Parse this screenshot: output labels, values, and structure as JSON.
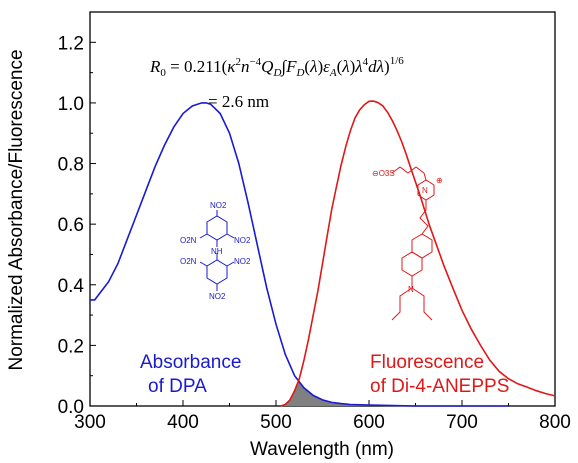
{
  "chart_data": {
    "type": "line",
    "title": "",
    "xlabel": "Wavelength (nm)",
    "ylabel": "Normalized Absorbance/Fluorescence",
    "xlim": [
      300,
      800
    ],
    "ylim": [
      0.0,
      1.3
    ],
    "x_ticks": [
      "300",
      "400",
      "500",
      "600",
      "700",
      "800"
    ],
    "y_ticks": [
      "0.0",
      "0.2",
      "0.4",
      "0.6",
      "0.8",
      "1.0",
      "1.2"
    ],
    "grid": false,
    "legend": "none",
    "series": [
      {
        "color": "#1a1ad0",
        "x": [
          300,
          305,
          310,
          320,
          330,
          340,
          350,
          360,
          370,
          380,
          390,
          400,
          410,
          420,
          425,
          430,
          440,
          450,
          460,
          470,
          480,
          490,
          500,
          510,
          520,
          530,
          540,
          550,
          560,
          570,
          580,
          600,
          620,
          650,
          700,
          750
        ],
        "y": [
          0.35,
          0.35,
          0.37,
          0.41,
          0.47,
          0.55,
          0.63,
          0.71,
          0.79,
          0.86,
          0.92,
          0.965,
          0.99,
          1.0,
          1.0,
          0.995,
          0.965,
          0.9,
          0.8,
          0.67,
          0.53,
          0.39,
          0.27,
          0.17,
          0.1,
          0.06,
          0.035,
          0.02,
          0.012,
          0.008,
          0.005,
          0.003,
          0.002,
          0.0,
          0.0,
          0.0
        ]
      },
      {
        "color": "#e01818",
        "x": [
          505,
          510,
          515,
          520,
          525,
          530,
          535,
          540,
          545,
          550,
          555,
          560,
          565,
          570,
          575,
          580,
          585,
          590,
          595,
          600,
          605,
          610,
          615,
          620,
          625,
          630,
          635,
          640,
          645,
          650,
          655,
          660,
          665,
          670,
          675,
          680,
          690,
          700,
          710,
          720,
          730,
          740,
          750,
          760,
          770,
          780,
          790,
          800
        ],
        "y": [
          0.0,
          0.005,
          0.02,
          0.05,
          0.09,
          0.15,
          0.22,
          0.3,
          0.38,
          0.47,
          0.56,
          0.65,
          0.73,
          0.8,
          0.86,
          0.91,
          0.95,
          0.975,
          0.99,
          1.0,
          1.0,
          0.995,
          0.985,
          0.965,
          0.94,
          0.91,
          0.875,
          0.835,
          0.79,
          0.745,
          0.7,
          0.65,
          0.6,
          0.555,
          0.51,
          0.465,
          0.385,
          0.31,
          0.25,
          0.2,
          0.155,
          0.12,
          0.095,
          0.075,
          0.06,
          0.045,
          0.035,
          0.03
        ]
      }
    ],
    "overlap_fill_color": "#808080",
    "annotations": {
      "formula_line1": "R0 = 0.211(κ2n−4QD∫FD(λ)εA(λ)λ4dλ)1/6",
      "formula_line2": "= 2.6 nm",
      "absorbance_label_line1": "Absorbance",
      "absorbance_label_line2": "of DPA",
      "fluorescence_label_line1": "Fluorescence",
      "fluorescence_label_line2": "of Di-4-ANEPPS"
    },
    "structure_labels": {
      "dpa": [
        "NO2",
        "O2N",
        "NO2",
        "NH",
        "O2N",
        "NO2",
        "NO2"
      ],
      "anepps": [
        "⊖O3S",
        "N",
        "⊕",
        "N"
      ]
    }
  }
}
